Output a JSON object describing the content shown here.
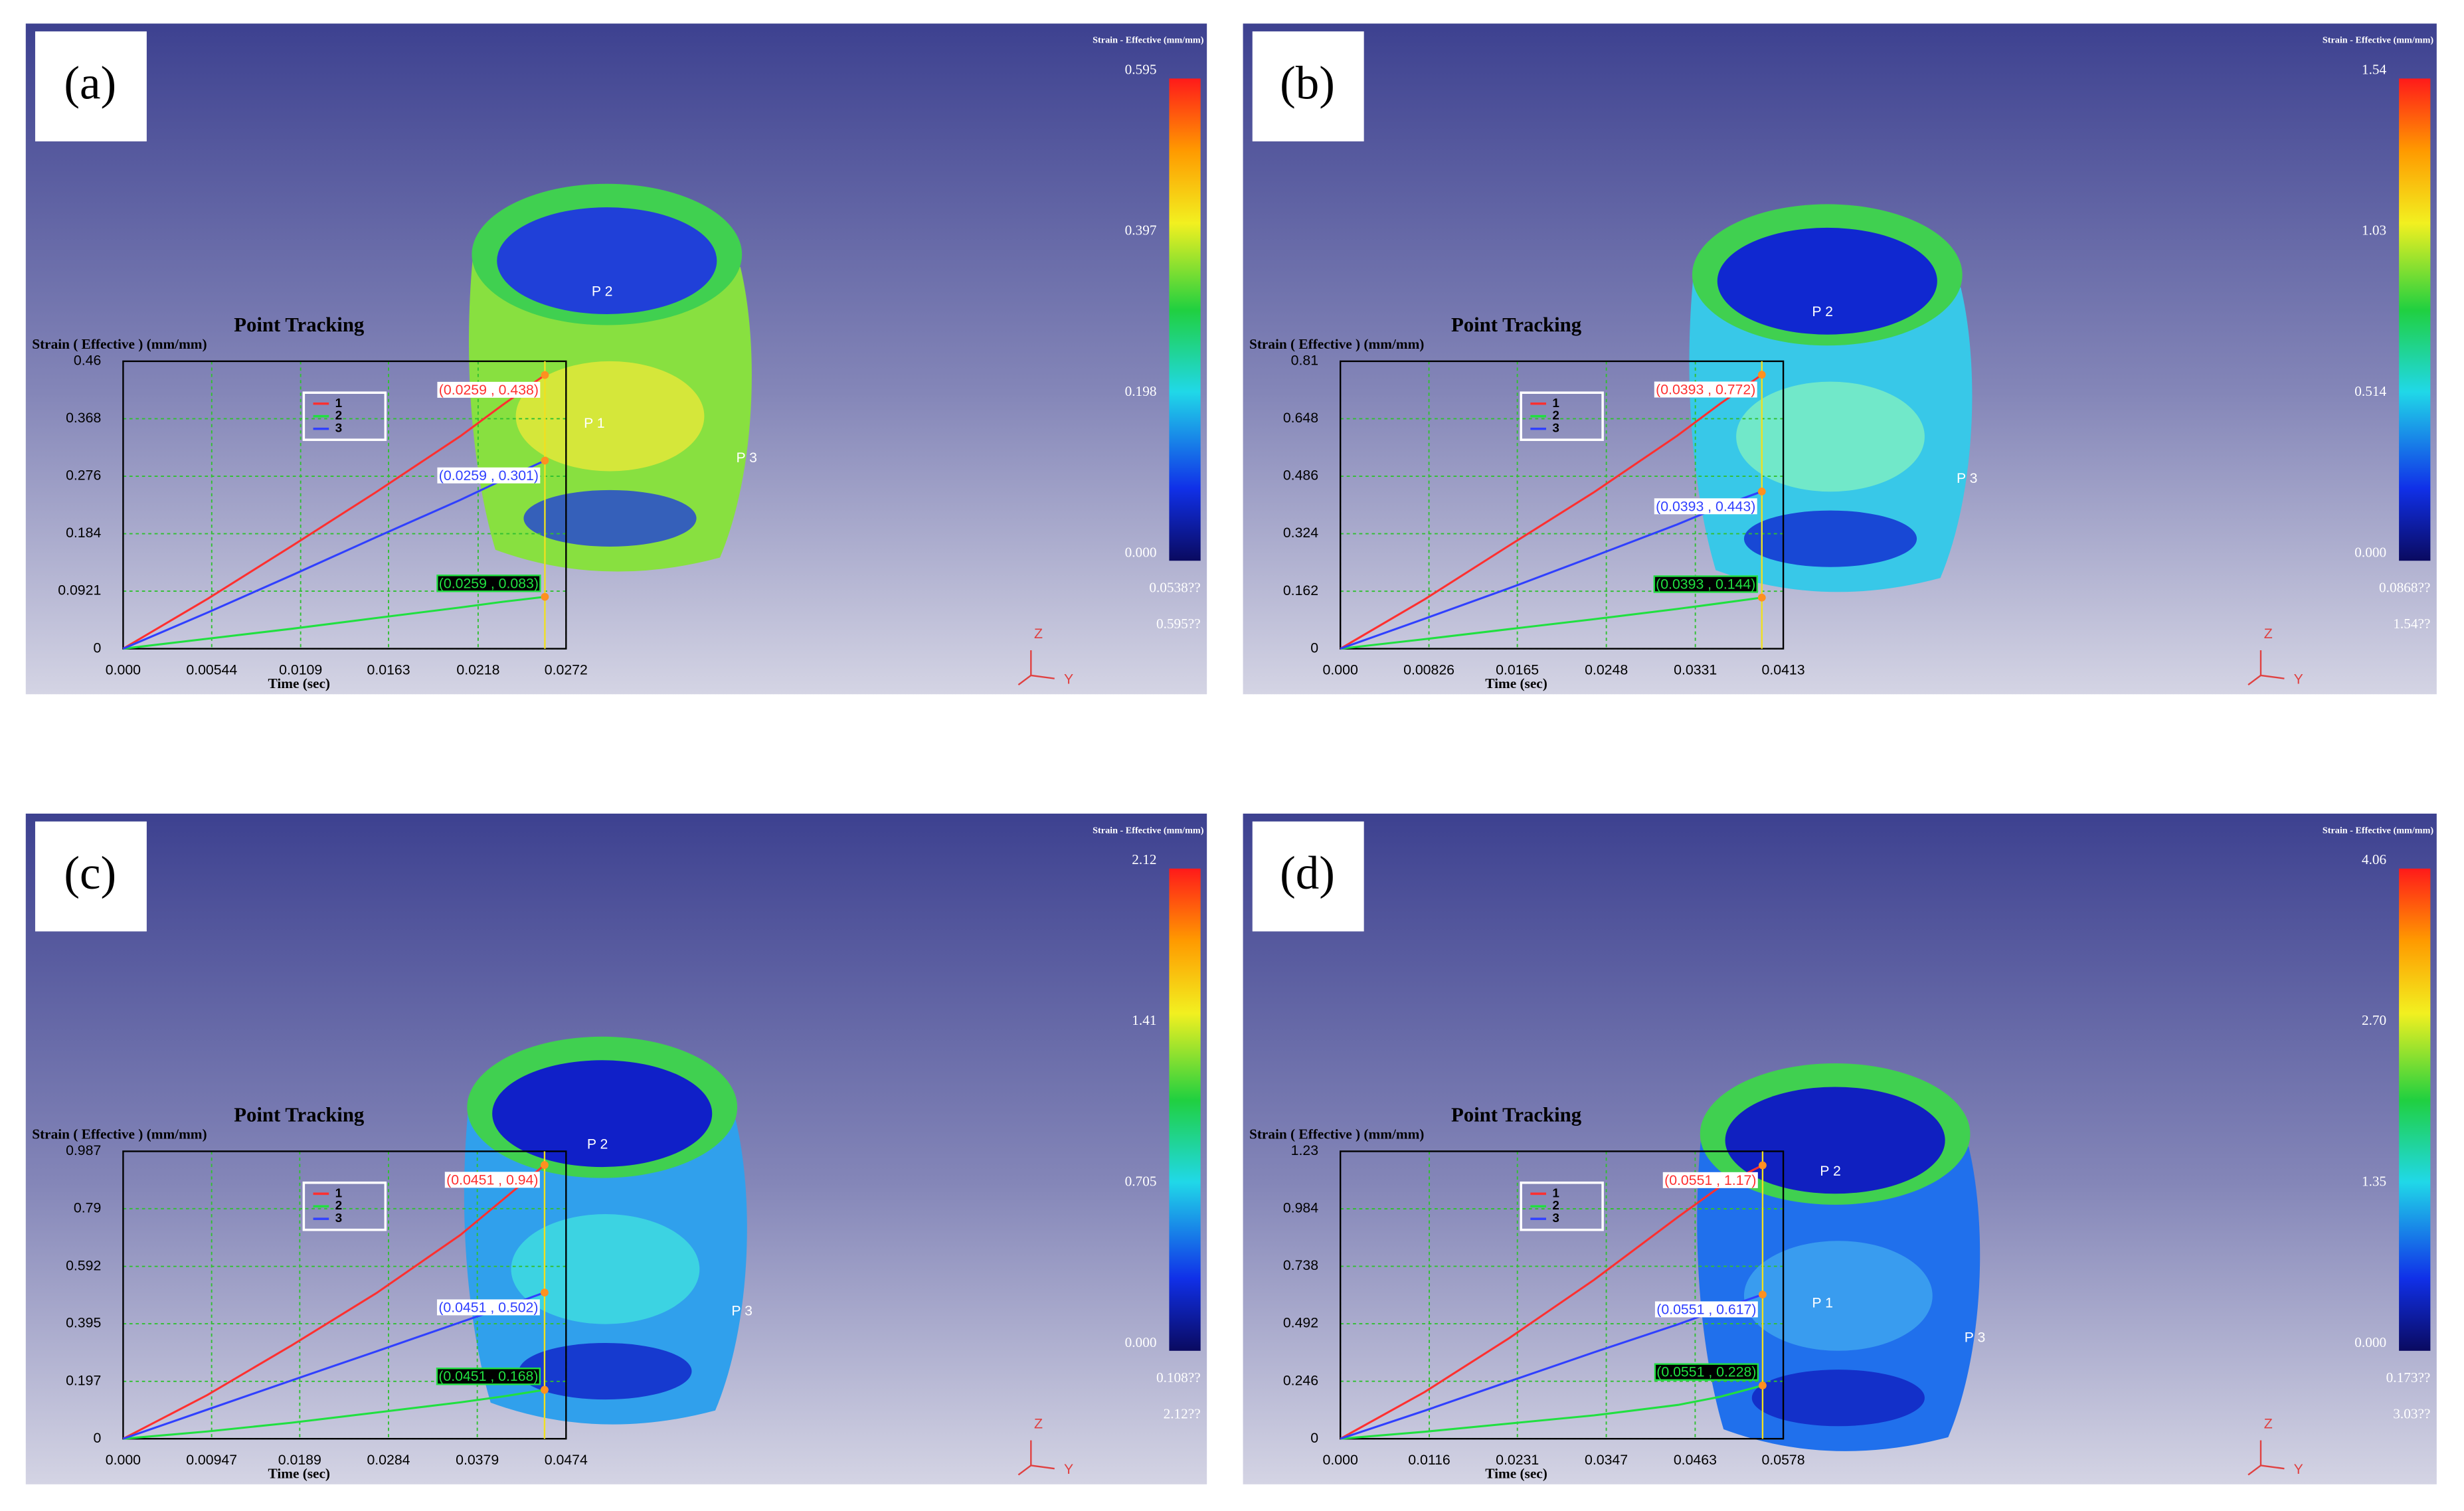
{
  "chart_data": [
    {
      "type": "line",
      "panel_label": "(a)",
      "title": "Point Tracking",
      "y_label": "Strain ( Effective )  (mm/mm)",
      "x_label": "Time (sec)",
      "x": [
        0,
        0.0052,
        0.0104,
        0.0155,
        0.0207,
        0.0233,
        0.0259
      ],
      "series": [
        {
          "name": "1",
          "color": "#ff3030",
          "values": [
            0,
            0.08,
            0.165,
            0.25,
            0.34,
            0.39,
            0.438
          ]
        },
        {
          "name": "2",
          "color": "#20e040",
          "values": [
            0,
            0.016,
            0.032,
            0.049,
            0.066,
            0.075,
            0.083
          ]
        },
        {
          "name": "3",
          "color": "#3040ff",
          "values": [
            0,
            0.058,
            0.118,
            0.178,
            0.238,
            0.27,
            0.301
          ]
        }
      ],
      "annotations": [
        "(0.0259 , 0.438)",
        "(0.0259 , 0.083)",
        "(0.0259 , 0.301)"
      ],
      "cursor_x": 0.0259,
      "xlim": [
        0,
        0.0272
      ],
      "xticks": [
        {
          "value": 0,
          "label": "0.000"
        },
        0.00544,
        0.0109,
        0.0163,
        0.0218,
        0.0272
      ],
      "ylim": [
        0,
        0.46
      ],
      "yticks": [
        0,
        0.0921,
        0.184,
        0.276,
        0.368,
        0.46
      ],
      "grid": true,
      "colorbar": {
        "title": "Strain - Effective (mm/mm)",
        "labels": [
          "0.595",
          "0.397",
          "0.198",
          "0.000"
        ],
        "min_label": "0.0538??",
        "max_label": "0.595??"
      },
      "point_labels": [
        "P 2",
        "P 1",
        "P 3"
      ],
      "triad": [
        "Z",
        "Y"
      ]
    },
    {
      "type": "line",
      "panel_label": "(b)",
      "title": "Point Tracking",
      "y_label": "Strain ( Effective )  (mm/mm)",
      "x_label": "Time (sec)",
      "x": [
        0,
        0.0079,
        0.0157,
        0.0236,
        0.0314,
        0.0354,
        0.0393
      ],
      "series": [
        {
          "name": "1",
          "color": "#ff3030",
          "values": [
            0,
            0.14,
            0.29,
            0.44,
            0.6,
            0.69,
            0.772
          ]
        },
        {
          "name": "2",
          "color": "#20e040",
          "values": [
            0,
            0.027,
            0.055,
            0.083,
            0.112,
            0.128,
            0.144
          ]
        },
        {
          "name": "3",
          "color": "#3040ff",
          "values": [
            0,
            0.085,
            0.17,
            0.26,
            0.35,
            0.4,
            0.443
          ]
        }
      ],
      "annotations": [
        "(0.0393 , 0.772)",
        "(0.0393 , 0.144)",
        "(0.0393 , 0.443)"
      ],
      "cursor_x": 0.0393,
      "xlim": [
        0,
        0.0413
      ],
      "xticks": [
        {
          "value": 0,
          "label": "0.000"
        },
        0.00826,
        0.0165,
        0.0248,
        0.0331,
        0.0413
      ],
      "ylim": [
        0,
        0.81
      ],
      "yticks": [
        0,
        0.162,
        0.324,
        0.486,
        0.648,
        0.81
      ],
      "grid": true,
      "colorbar": {
        "title": "Strain - Effective (mm/mm)",
        "labels": [
          "1.54",
          "1.03",
          "0.514",
          "0.000"
        ],
        "min_label": "0.0868??",
        "max_label": "1.54??"
      },
      "point_labels": [
        "P 2",
        "P 3"
      ],
      "triad": [
        "Z",
        "Y"
      ]
    },
    {
      "type": "line",
      "panel_label": "(c)",
      "title": "Point Tracking",
      "y_label": "Strain ( Effective )  (mm/mm)",
      "x_label": "Time (sec)",
      "x": [
        0,
        0.009,
        0.018,
        0.0271,
        0.0361,
        0.0406,
        0.0451
      ],
      "series": [
        {
          "name": "1",
          "color": "#ff3030",
          "values": [
            0,
            0.15,
            0.32,
            0.5,
            0.7,
            0.82,
            0.94
          ]
        },
        {
          "name": "2",
          "color": "#20e040",
          "values": [
            0,
            0.025,
            0.055,
            0.09,
            0.125,
            0.145,
            0.168
          ]
        },
        {
          "name": "3",
          "color": "#3040ff",
          "values": [
            0,
            0.1,
            0.2,
            0.3,
            0.4,
            0.45,
            0.502
          ]
        }
      ],
      "annotations": [
        "(0.0451 , 0.94)",
        "(0.0451 , 0.168)",
        "(0.0451 , 0.502)"
      ],
      "cursor_x": 0.0451,
      "xlim": [
        0,
        0.0474
      ],
      "xticks": [
        {
          "value": 0,
          "label": "0.000"
        },
        0.00947,
        0.0189,
        0.0284,
        0.0379,
        0.0474
      ],
      "ylim": [
        0,
        0.987
      ],
      "yticks": [
        0,
        0.197,
        0.395,
        0.592,
        0.79,
        0.987
      ],
      "grid": true,
      "colorbar": {
        "title": "Strain - Effective (mm/mm)",
        "labels": [
          "2.12",
          "1.41",
          "0.705",
          "0.000"
        ],
        "min_label": "0.108??",
        "max_label": "2.12??"
      },
      "point_labels": [
        "P 2",
        "P 3"
      ],
      "triad": [
        "Z",
        "Y"
      ]
    },
    {
      "type": "line",
      "panel_label": "(d)",
      "title": "Point Tracking",
      "y_label": "Strain ( Effective )  (mm/mm)",
      "x_label": "Time (sec)",
      "x": [
        0,
        0.011,
        0.022,
        0.0331,
        0.0441,
        0.0496,
        0.0551
      ],
      "series": [
        {
          "name": "1",
          "color": "#ff3030",
          "values": [
            0,
            0.2,
            0.43,
            0.68,
            0.95,
            1.08,
            1.17
          ]
        },
        {
          "name": "2",
          "color": "#20e040",
          "values": [
            0,
            0.03,
            0.065,
            0.1,
            0.145,
            0.18,
            0.228
          ]
        },
        {
          "name": "3",
          "color": "#3040ff",
          "values": [
            0,
            0.12,
            0.245,
            0.37,
            0.49,
            0.555,
            0.617
          ]
        }
      ],
      "annotations": [
        "(0.0551 , 1.17)",
        "(0.0551 , 0.228)",
        "(0.0551 , 0.617)"
      ],
      "cursor_x": 0.0551,
      "xlim": [
        0,
        0.0578
      ],
      "xticks": [
        {
          "value": 0,
          "label": "0.000"
        },
        0.0116,
        0.0231,
        0.0347,
        0.0463,
        0.0578
      ],
      "ylim": [
        0,
        1.23
      ],
      "yticks": [
        0,
        0.246,
        0.492,
        0.738,
        0.984,
        1.23
      ],
      "grid": true,
      "colorbar": {
        "title": "Strain - Effective (mm/mm)",
        "labels": [
          "4.06",
          "2.70",
          "1.35",
          "0.000"
        ],
        "min_label": "0.173??",
        "max_label": "3.03??"
      },
      "point_labels": [
        "P 2",
        "P 1",
        "P 3"
      ],
      "triad": [
        "Z",
        "Y"
      ]
    }
  ]
}
